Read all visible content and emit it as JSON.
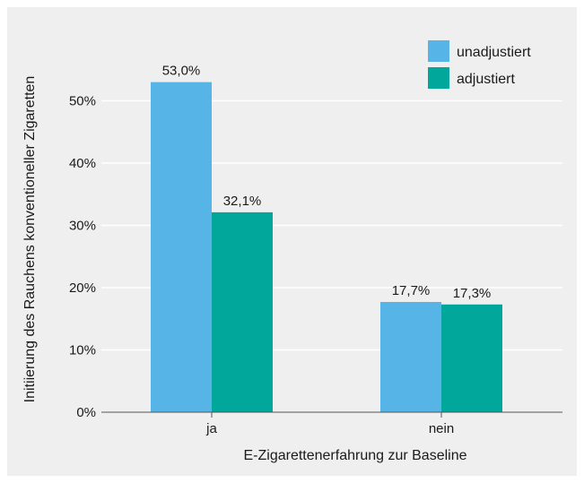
{
  "chart_data": {
    "type": "bar",
    "title": "",
    "xlabel": "E-Zigarettenerfahrung zur Baseline",
    "ylabel": "Initiierung des Rauchens konventioneller Zigaretten",
    "categories": [
      "ja",
      "nein"
    ],
    "series": [
      {
        "name": "unadjustiert",
        "values": [
          53.0,
          17.7
        ],
        "labels": [
          "53,0%",
          "17,7%"
        ],
        "color": "#56b4e6"
      },
      {
        "name": "adjustiert",
        "values": [
          32.1,
          17.3
        ],
        "labels": [
          "32,1%",
          "17,3%"
        ],
        "color": "#00a79a"
      }
    ],
    "ylim": [
      0,
      60
    ],
    "yticks": [
      0,
      10,
      20,
      30,
      40,
      50
    ],
    "ytick_labels": [
      "0%",
      "10%",
      "20%",
      "30%",
      "40%",
      "50%"
    ],
    "grid": true,
    "legend_position": "top-right"
  }
}
